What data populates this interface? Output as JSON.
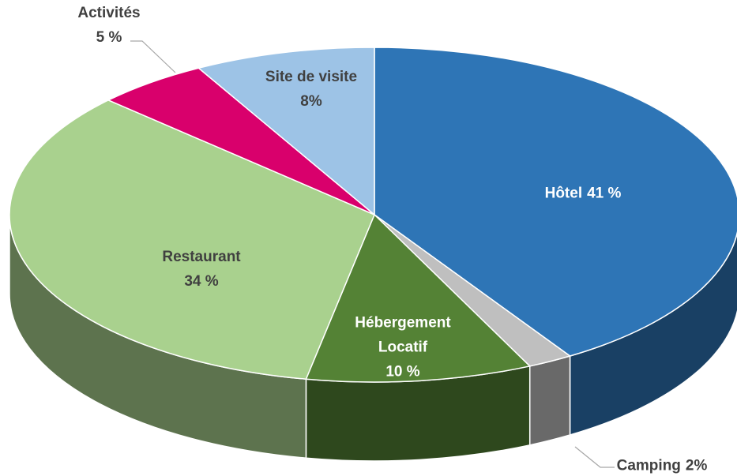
{
  "chart_data": {
    "type": "pie3d",
    "categories": [
      "Hôtel",
      "Camping",
      "Hébergement Locatif",
      "Restaurant",
      "Activités",
      "Site de visite"
    ],
    "values": [
      41,
      2,
      10,
      34,
      5,
      8
    ],
    "value_labels": [
      "41 %",
      "2%",
      "10 %",
      "34 %",
      "5 %",
      "8%"
    ],
    "colors": [
      "#2e75b6",
      "#bfbfbf",
      "#548235",
      "#a9d18e",
      "#d9006c",
      "#9dc3e6"
    ]
  }
}
